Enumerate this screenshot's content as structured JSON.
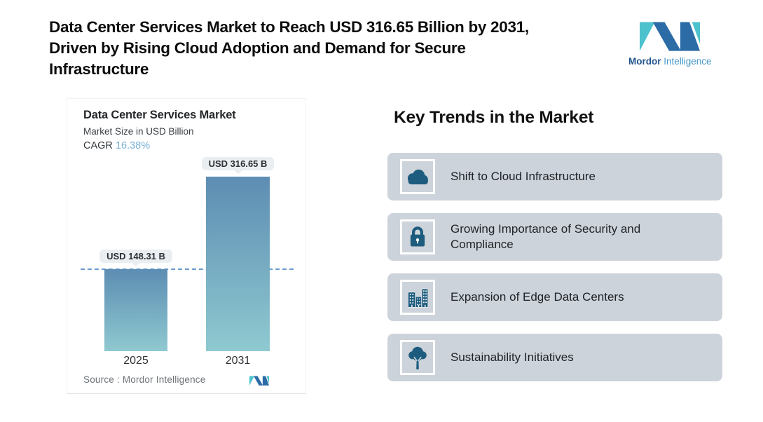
{
  "header": {
    "lines": [
      "Data Center Services Market to Reach USD 316.65 Billion by 2031,",
      "Driven by Rising Cloud Adoption and Demand for Secure",
      "Infrastructure"
    ]
  },
  "brand": {
    "name_bold": "Mordor",
    "name_light": "Intelligence"
  },
  "chart_card": {
    "title": "Data Center Services Market",
    "subtitle": "Market Size in USD Billion",
    "cagr_label": "CAGR",
    "cagr_value": "16.38%",
    "source_label": "Source :  Mordor Intelligence"
  },
  "chart_data": {
    "type": "bar",
    "title": "Data Center Services Market",
    "subtitle": "Market Size in USD Billion",
    "categories": [
      "2025",
      "2031"
    ],
    "values": [
      148.31,
      316.65
    ],
    "bar_labels": [
      "USD 148.31 B",
      "USD 316.65 B"
    ],
    "cagr": "16.38%",
    "ylabel": "Market Size in USD Billion",
    "reference_line_value": 148.31,
    "grid": false,
    "legend": false
  },
  "trends": {
    "heading": "Key Trends in the Market",
    "items": [
      {
        "icon": "cloud-icon",
        "label": "Shift to Cloud Infrastructure"
      },
      {
        "icon": "lock-icon",
        "label": "Growing Importance of Security and Compliance"
      },
      {
        "icon": "buildings-icon",
        "label": "Expansion of Edge Data Centers"
      },
      {
        "icon": "tree-icon",
        "label": "Sustainability Initiatives"
      }
    ]
  },
  "colors": {
    "brand_teal": "#4cc2cd",
    "brand_blue": "#2b6ba6",
    "bar_gradient_top": "#5d8db3",
    "bar_gradient_bottom": "#8fc9d0",
    "dashed_line": "#689bce",
    "trend_card_bg": "#cdd3da",
    "icon_teal": "#1d5c7e",
    "cagr_value": "#79b0d6",
    "badge_bg": "#eaeef1"
  }
}
